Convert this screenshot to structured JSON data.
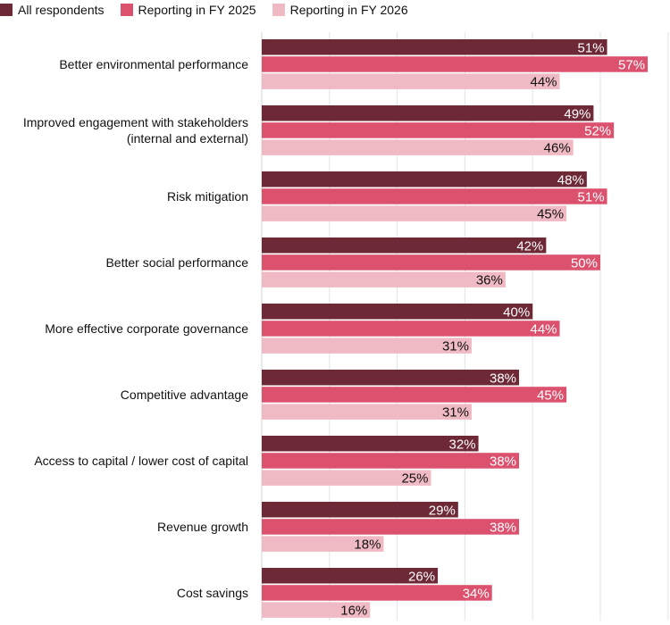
{
  "chart_data": {
    "type": "bar",
    "orientation": "horizontal",
    "title": "",
    "xlabel": "",
    "ylabel": "",
    "xlim": [
      0,
      60
    ],
    "grid": true,
    "legend_position": "top-left",
    "value_suffix": "%",
    "categories": [
      [
        "Better environmental performance"
      ],
      [
        "Improved engagement with stakeholders",
        "(internal and external)"
      ],
      [
        "Risk mitigation"
      ],
      [
        "Better social performance"
      ],
      [
        "More effective corporate governance"
      ],
      [
        "Competitive advantage"
      ],
      [
        "Access to capital / lower cost of capital"
      ],
      [
        "Revenue growth"
      ],
      [
        "Cost savings"
      ]
    ],
    "series": [
      {
        "name": "All respondents",
        "color": "#6e2936",
        "label_color": "#ffffff",
        "values": [
          51,
          49,
          48,
          42,
          40,
          38,
          32,
          29,
          26
        ]
      },
      {
        "name": "Reporting in FY 2025",
        "color": "#dc526e",
        "label_color": "#ffffff",
        "values": [
          57,
          52,
          51,
          50,
          44,
          45,
          38,
          38,
          34
        ]
      },
      {
        "name": "Reporting in FY 2026",
        "color": "#f0bac4",
        "label_color": "#111111",
        "values": [
          44,
          46,
          45,
          36,
          31,
          31,
          25,
          18,
          16
        ]
      }
    ]
  }
}
